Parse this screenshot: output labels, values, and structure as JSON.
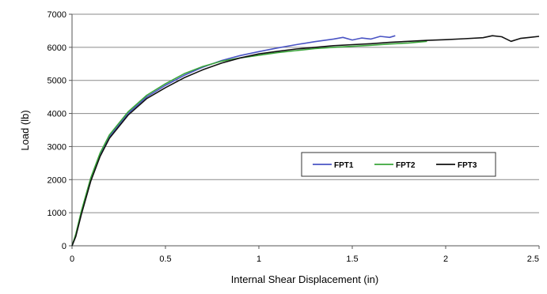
{
  "chart_data": {
    "type": "line",
    "title": "",
    "xlabel": "Internal Shear Displacement (in)",
    "ylabel": "Load (lb)",
    "xlim": [
      0,
      2.5
    ],
    "ylim": [
      0,
      7000
    ],
    "xticks": [
      0,
      0.5,
      1,
      1.5,
      2,
      2.5
    ],
    "xtick_labels": [
      "0",
      "0.5",
      "1",
      "1.5",
      "2",
      "2.5"
    ],
    "yticks": [
      0,
      1000,
      2000,
      3000,
      4000,
      5000,
      6000,
      7000
    ],
    "ytick_labels": [
      "0",
      "1000",
      "2000",
      "3000",
      "4000",
      "5000",
      "6000",
      "7000"
    ],
    "grid": "horizontal",
    "legend_position": "center-right",
    "series": [
      {
        "name": "FPT1",
        "color": "#4a54c4",
        "x": [
          0,
          0.02,
          0.05,
          0.1,
          0.15,
          0.2,
          0.3,
          0.4,
          0.5,
          0.6,
          0.7,
          0.8,
          0.9,
          1.0,
          1.1,
          1.2,
          1.3,
          1.4,
          1.45,
          1.5,
          1.55,
          1.6,
          1.65,
          1.7,
          1.73
        ],
        "y": [
          0,
          300,
          1000,
          2000,
          2750,
          3300,
          4000,
          4500,
          4850,
          5150,
          5400,
          5600,
          5750,
          5870,
          5980,
          6080,
          6170,
          6250,
          6300,
          6220,
          6280,
          6250,
          6330,
          6300,
          6350
        ]
      },
      {
        "name": "FPT2",
        "color": "#3aa63a",
        "x": [
          0,
          0.02,
          0.05,
          0.1,
          0.15,
          0.2,
          0.3,
          0.4,
          0.5,
          0.6,
          0.7,
          0.8,
          0.9,
          1.0,
          1.1,
          1.2,
          1.3,
          1.4,
          1.5,
          1.6,
          1.7,
          1.8,
          1.9
        ],
        "y": [
          0,
          350,
          1050,
          2050,
          2800,
          3350,
          4050,
          4550,
          4900,
          5200,
          5420,
          5580,
          5680,
          5760,
          5840,
          5900,
          5960,
          6000,
          6030,
          6060,
          6100,
          6130,
          6180
        ]
      },
      {
        "name": "FPT3",
        "color": "#111111",
        "x": [
          0,
          0.02,
          0.05,
          0.1,
          0.15,
          0.2,
          0.3,
          0.4,
          0.5,
          0.6,
          0.7,
          0.8,
          0.9,
          1.0,
          1.1,
          1.2,
          1.3,
          1.4,
          1.5,
          1.6,
          1.7,
          1.8,
          1.9,
          2.0,
          2.1,
          2.2,
          2.25,
          2.3,
          2.35,
          2.4,
          2.45,
          2.5
        ],
        "y": [
          0,
          280,
          950,
          1950,
          2700,
          3250,
          3950,
          4450,
          4780,
          5080,
          5320,
          5520,
          5680,
          5800,
          5880,
          5950,
          6000,
          6050,
          6080,
          6110,
          6150,
          6180,
          6210,
          6230,
          6260,
          6290,
          6350,
          6320,
          6180,
          6270,
          6300,
          6330
        ]
      }
    ]
  }
}
